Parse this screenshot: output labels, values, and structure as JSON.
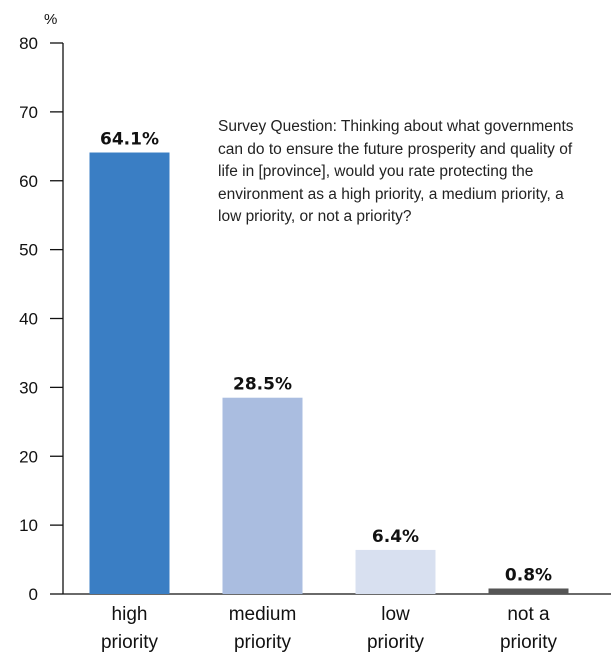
{
  "chart_data": {
    "type": "bar",
    "unit": "%",
    "ylim": [
      0,
      80
    ],
    "yticks": [
      0,
      10,
      20,
      30,
      40,
      50,
      60,
      70,
      80
    ],
    "grid": false,
    "categories": [
      [
        "high",
        "priority"
      ],
      [
        "medium",
        "priority"
      ],
      [
        "low",
        "priority"
      ],
      [
        "not a",
        "priority"
      ]
    ],
    "values": [
      64.1,
      28.5,
      6.4,
      0.8
    ],
    "data_labels": [
      "64.1%",
      "28.5%",
      "6.4%",
      "0.8%"
    ],
    "colors": [
      "#3a7ec4",
      "#aabde0",
      "#d8e0f0",
      "#555555"
    ],
    "annotation": "Survey Question:  Thinking about what governments can do to ensure the future prosperity and quality of life in [province], would you rate protecting the environment as a high priority, a medium priority, a low priority, or not a priority?"
  }
}
